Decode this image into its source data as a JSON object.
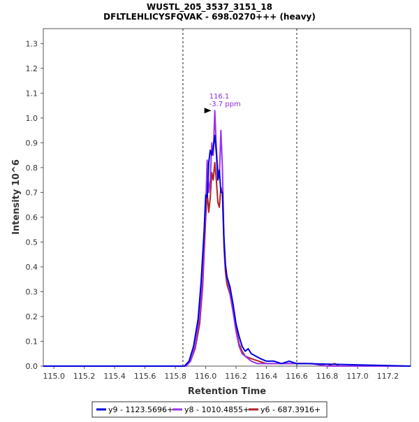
{
  "chart_data": {
    "type": "line",
    "title": "WUSTL_205_3537_3151_18",
    "subtitle": "DFLTLEHLICYSFQVAK - 698.0270+++ (heavy)",
    "xlabel": "Retention Time",
    "ylabel": "Intensity 10^6",
    "xlim": [
      114.93,
      117.35
    ],
    "ylim": [
      0,
      1.36
    ],
    "x_ticks": [
      115.0,
      115.2,
      115.4,
      115.6,
      115.8,
      116.0,
      116.2,
      116.4,
      116.6,
      116.8,
      117.0,
      117.2
    ],
    "x_tick_labels": [
      "115.0",
      "115.2",
      "115.4",
      "115.6",
      "115.8",
      "116.0",
      "116.2",
      "116.4",
      "116.6",
      "116.8",
      "117.0",
      "117.2"
    ],
    "y_ticks": [
      0.0,
      0.1,
      0.2,
      0.3,
      0.4,
      0.5,
      0.6,
      0.7,
      0.8,
      0.9,
      1.0,
      1.1,
      1.2,
      1.3
    ],
    "y_tick_labels": [
      "0.0",
      "0.1",
      "0.2",
      "0.3",
      "0.4",
      "0.5",
      "0.6",
      "0.7",
      "0.8",
      "0.9",
      "1.0",
      "1.1",
      "1.2",
      "1.3"
    ],
    "integration_bounds": [
      115.85,
      116.6
    ],
    "legend_position": "bottom",
    "annotation": {
      "x": 116.06,
      "y": 1.03,
      "lines": [
        "116.1",
        "-3.7 ppm"
      ]
    },
    "series": [
      {
        "name": "y9 - 1123.5696+",
        "color": "#0000dd",
        "x": [
          114.93,
          115.86,
          115.89,
          115.92,
          115.95,
          115.97,
          115.99,
          116.0,
          116.01,
          116.02,
          116.03,
          116.04,
          116.05,
          116.06,
          116.07,
          116.08,
          116.09,
          116.1,
          116.11,
          116.12,
          116.13,
          116.14,
          116.16,
          116.18,
          116.2,
          116.22,
          116.24,
          116.26,
          116.28,
          116.3,
          116.33,
          116.36,
          116.4,
          116.45,
          116.5,
          116.55,
          116.6,
          116.65,
          117.35
        ],
        "values": [
          0.0,
          0.0,
          0.02,
          0.08,
          0.19,
          0.34,
          0.55,
          0.69,
          0.68,
          0.82,
          0.87,
          0.85,
          0.88,
          0.93,
          0.86,
          0.75,
          0.79,
          0.7,
          0.7,
          0.52,
          0.41,
          0.36,
          0.32,
          0.25,
          0.17,
          0.12,
          0.08,
          0.06,
          0.07,
          0.05,
          0.04,
          0.03,
          0.02,
          0.02,
          0.01,
          0.02,
          0.01,
          0.01,
          0.0
        ]
      },
      {
        "name": "y8 - 1010.4855+",
        "color": "#9933ee",
        "x": [
          114.93,
          115.87,
          115.9,
          115.93,
          115.96,
          115.98,
          115.99,
          116.0,
          116.01,
          116.02,
          116.03,
          116.04,
          116.05,
          116.06,
          116.07,
          116.08,
          116.09,
          116.1,
          116.11,
          116.12,
          116.13,
          116.14,
          116.16,
          116.18,
          116.2,
          116.22,
          116.24,
          116.26,
          116.28,
          116.3,
          116.34,
          116.38,
          116.42,
          116.5,
          116.6,
          116.7,
          116.8,
          117.35
        ],
        "values": [
          0.0,
          0.0,
          0.02,
          0.08,
          0.2,
          0.35,
          0.5,
          0.65,
          0.83,
          0.7,
          0.75,
          0.9,
          0.85,
          1.03,
          0.88,
          0.78,
          0.76,
          0.95,
          0.8,
          0.5,
          0.4,
          0.36,
          0.3,
          0.22,
          0.14,
          0.08,
          0.05,
          0.04,
          0.03,
          0.02,
          0.01,
          0.01,
          0.01,
          0.01,
          0.01,
          0.01,
          0.0,
          0.0
        ]
      },
      {
        "name": "y6 - 687.3916+",
        "color": "#b22222",
        "x": [
          114.93,
          115.87,
          115.9,
          115.93,
          115.96,
          115.98,
          116.0,
          116.01,
          116.02,
          116.03,
          116.04,
          116.05,
          116.06,
          116.07,
          116.08,
          116.09,
          116.1,
          116.11,
          116.12,
          116.13,
          116.14,
          116.16,
          116.18,
          116.2,
          116.22,
          116.24,
          116.26,
          116.3,
          116.35,
          116.4,
          116.5,
          116.6,
          116.7,
          116.8,
          116.85,
          116.88,
          117.35
        ],
        "values": [
          0.0,
          0.0,
          0.02,
          0.07,
          0.17,
          0.32,
          0.6,
          0.7,
          0.62,
          0.68,
          0.78,
          0.75,
          0.82,
          0.75,
          0.66,
          0.64,
          0.72,
          0.7,
          0.48,
          0.38,
          0.33,
          0.29,
          0.22,
          0.15,
          0.09,
          0.06,
          0.04,
          0.03,
          0.02,
          0.01,
          0.01,
          0.01,
          0.01,
          0.0,
          0.01,
          0.0,
          0.0
        ]
      }
    ]
  }
}
